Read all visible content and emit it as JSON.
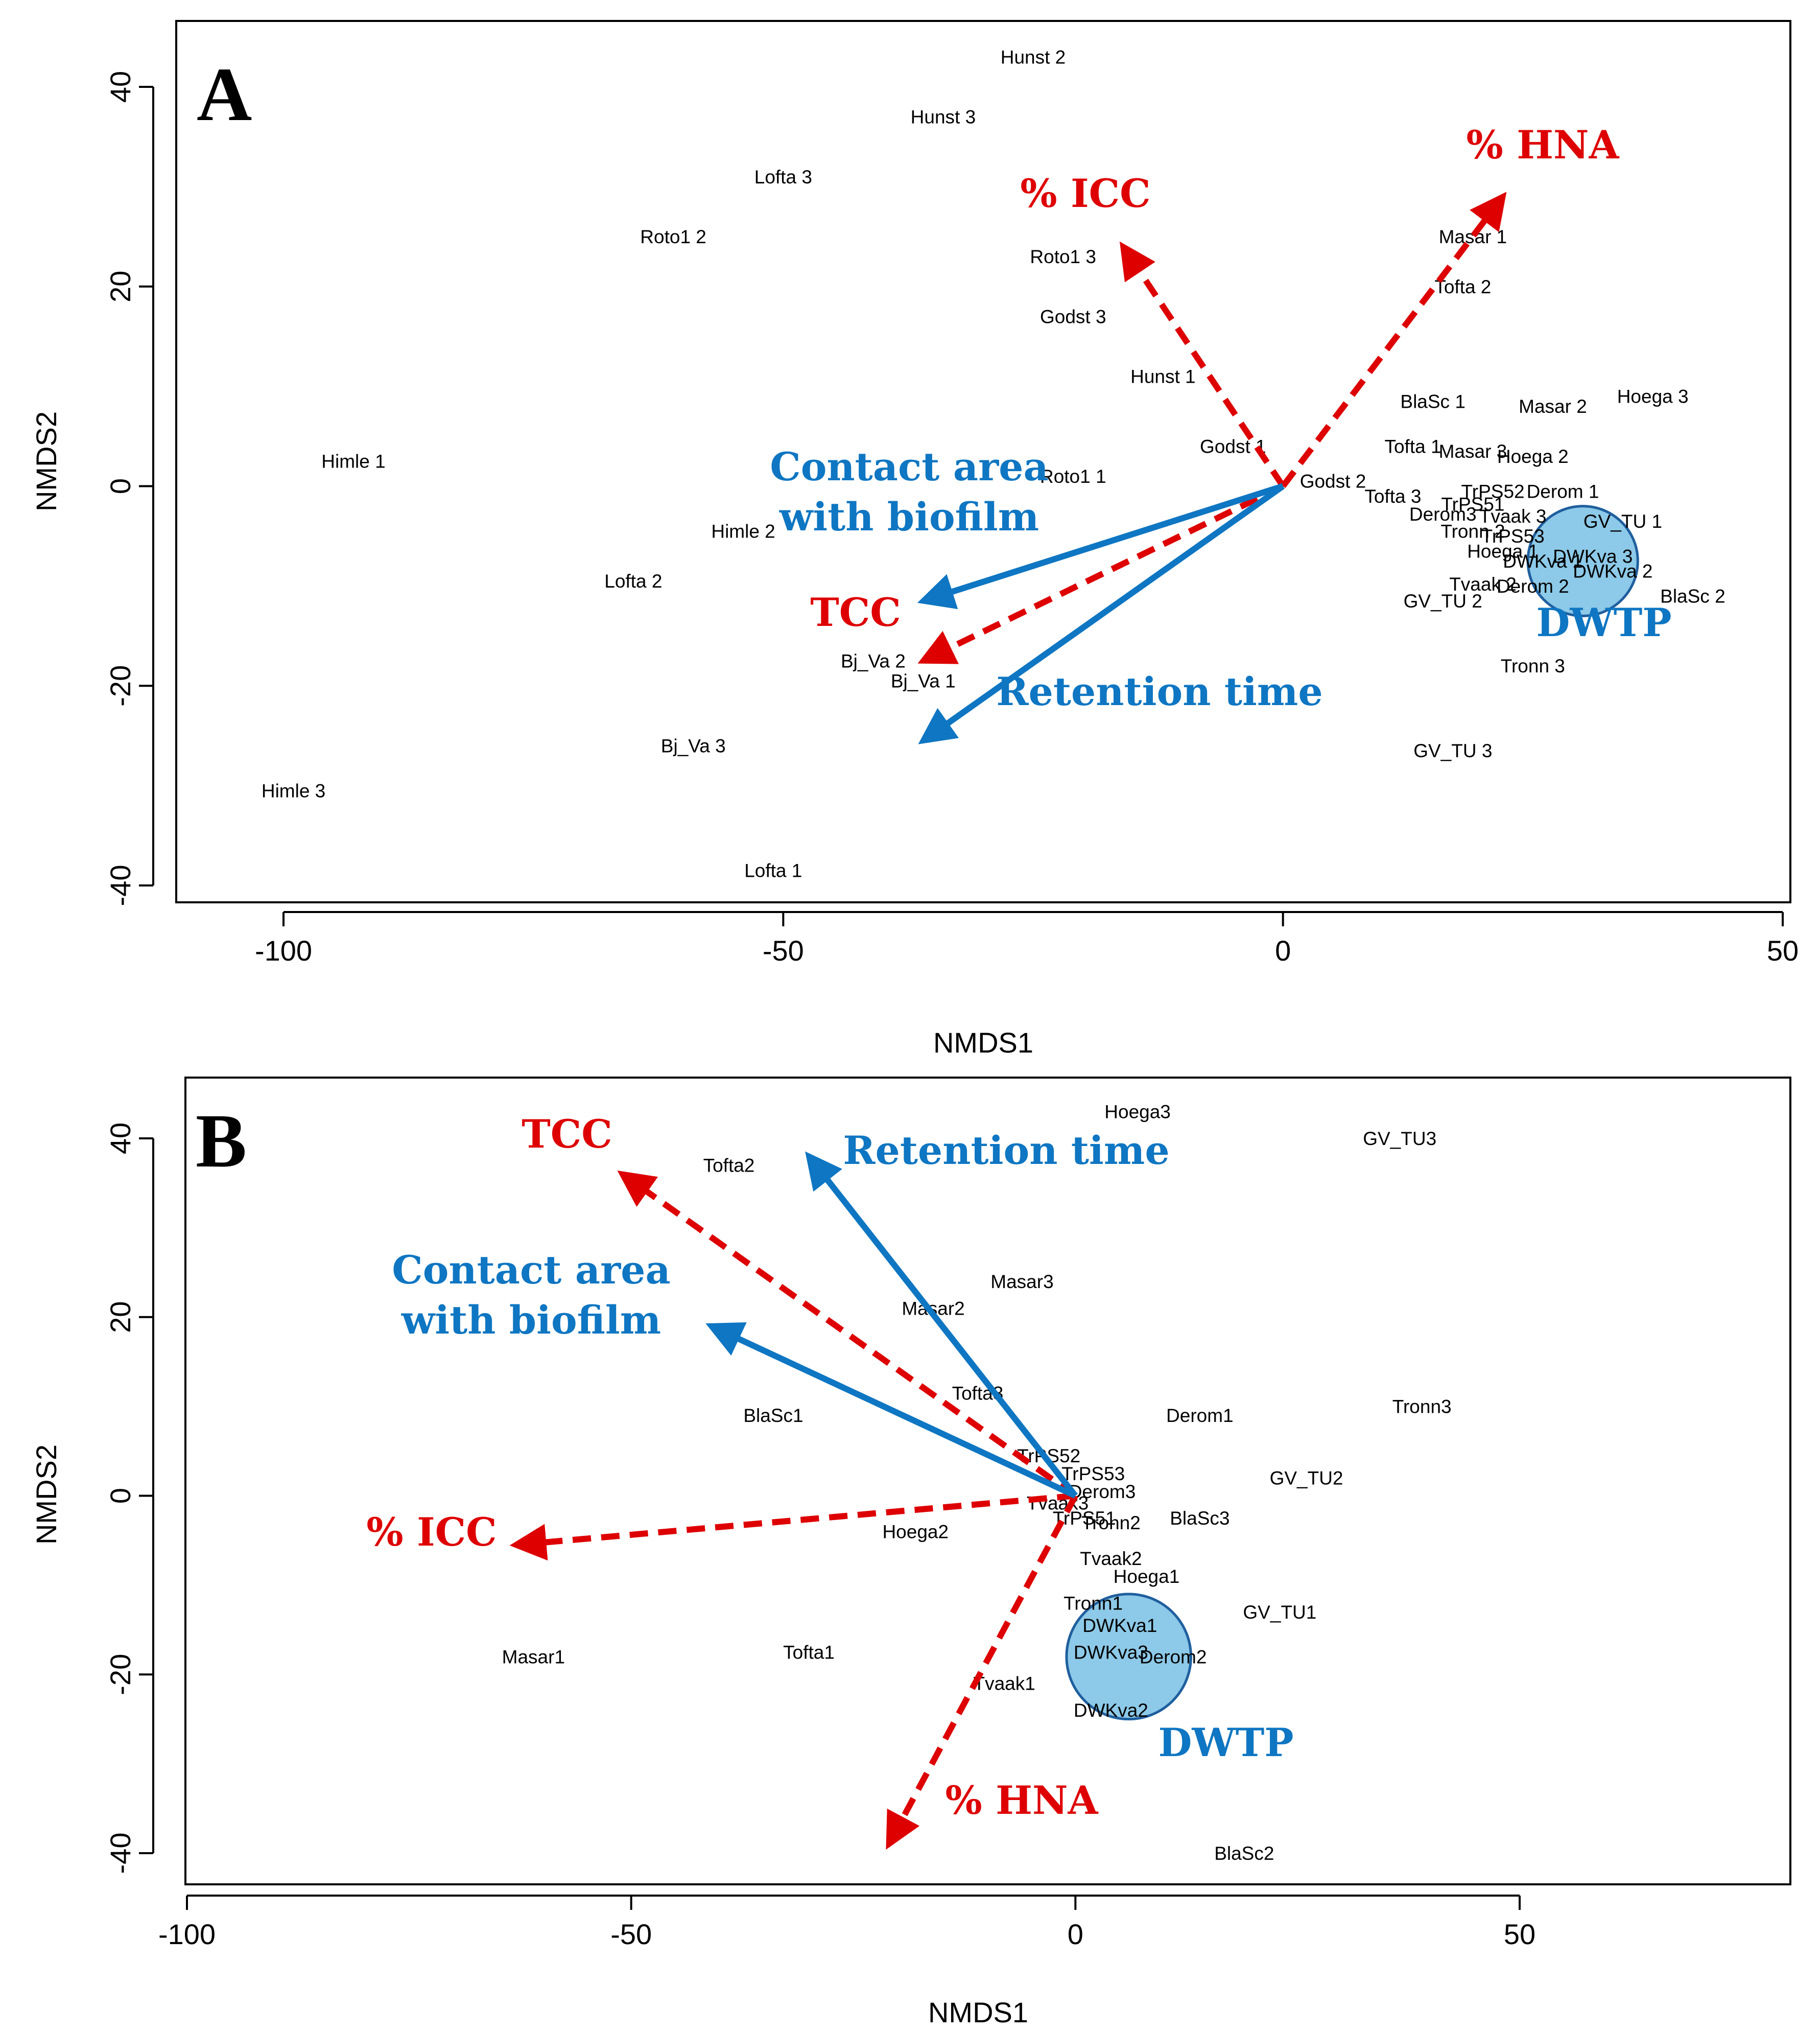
{
  "colors": {
    "env_arrow": "#0e76c2",
    "cyto_arrow": "#de0000",
    "dwtp_fill": "#8dc9e8",
    "dwtp_stroke": "#1f5f9e"
  },
  "chart_data": [
    {
      "type": "scatter",
      "panel": "A",
      "xlabel": "NMDS1",
      "ylabel": "NMDS2",
      "xlim": [
        -111,
        51
      ],
      "ylim": [
        -41.5,
        46.5
      ],
      "xticks": [
        -100,
        -50,
        0,
        50
      ],
      "yticks": [
        -40,
        -20,
        0,
        20,
        40
      ],
      "xtick_labels": [
        "-100",
        "-50",
        "0",
        "50"
      ],
      "ytick_labels": [
        "-40",
        "-20",
        "0",
        "20",
        "40"
      ],
      "points": [
        {
          "label": "Hunst 2",
          "x": -25,
          "y": 43
        },
        {
          "label": "Hunst 3",
          "x": -34,
          "y": 37
        },
        {
          "label": "Lofta 3",
          "x": -50,
          "y": 31
        },
        {
          "label": "Roto1 2",
          "x": -61,
          "y": 25
        },
        {
          "label": "Roto1 3",
          "x": -22,
          "y": 23
        },
        {
          "label": "Godst 3",
          "x": -21,
          "y": 17
        },
        {
          "label": "Hunst 1",
          "x": -12,
          "y": 11
        },
        {
          "label": "Himle 1",
          "x": -93,
          "y": 2.5
        },
        {
          "label": "Roto1 1",
          "x": -21,
          "y": 1
        },
        {
          "label": "Himle 2",
          "x": -54,
          "y": -4.5
        },
        {
          "label": "Lofta 2",
          "x": -65,
          "y": -9.5
        },
        {
          "label": "Bj_Va 2",
          "x": -41,
          "y": -17.5
        },
        {
          "label": "Bj_Va 1",
          "x": -36,
          "y": -19.5
        },
        {
          "label": "Bj_Va 3",
          "x": -59,
          "y": -26
        },
        {
          "label": "Himle 3",
          "x": -99,
          "y": -30.5
        },
        {
          "label": "Lofta 1",
          "x": -51,
          "y": -38.5
        },
        {
          "label": "Masar 1",
          "x": 19,
          "y": 25
        },
        {
          "label": "Tofta 2",
          "x": 18,
          "y": 20
        },
        {
          "label": "BlaSc 1",
          "x": 15,
          "y": 8.5
        },
        {
          "label": "Masar 2",
          "x": 27,
          "y": 8
        },
        {
          "label": "Hoega 3",
          "x": 37,
          "y": 9
        },
        {
          "label": "Godst 1",
          "x": -5,
          "y": 4
        },
        {
          "label": "Tofta 1",
          "x": 13,
          "y": 4
        },
        {
          "label": "Masar 3",
          "x": 19,
          "y": 3.5
        },
        {
          "label": "Hoega 2",
          "x": 25,
          "y": 3
        },
        {
          "label": "Godst 2",
          "x": 5,
          "y": 0.5
        },
        {
          "label": "Tofta 3",
          "x": 11,
          "y": -1
        },
        {
          "label": "TrPS52",
          "x": 21,
          "y": -0.5
        },
        {
          "label": "Derom 1",
          "x": 28,
          "y": -0.5
        },
        {
          "label": "TrPS51",
          "x": 19,
          "y": -1.8
        },
        {
          "label": "Derom3",
          "x": 16,
          "y": -2.8
        },
        {
          "label": "Tvaak 3",
          "x": 23,
          "y": -3
        },
        {
          "label": "GV_TU 1",
          "x": 34,
          "y": -3.5
        },
        {
          "label": "Tronn 2",
          "x": 19,
          "y": -4.5
        },
        {
          "label": "TrPS53",
          "x": 23,
          "y": -5
        },
        {
          "label": "Hoega 1",
          "x": 22,
          "y": -6.5
        },
        {
          "label": "DWKva 3",
          "x": 31,
          "y": -7
        },
        {
          "label": "DWKva 1",
          "x": 26,
          "y": -7.5
        },
        {
          "label": "DWKva 2",
          "x": 33,
          "y": -8.5
        },
        {
          "label": "Tvaak 2",
          "x": 20,
          "y": -9.8
        },
        {
          "label": "Derom 2",
          "x": 25,
          "y": -10
        },
        {
          "label": "GV_TU 2",
          "x": 16,
          "y": -11.5
        },
        {
          "label": "BlaSc 2",
          "x": 41,
          "y": -11
        },
        {
          "label": "Tronn 3",
          "x": 25,
          "y": -18
        },
        {
          "label": "GV_TU 3",
          "x": 17,
          "y": -26.5
        }
      ],
      "arrows": [
        {
          "label": "% HNA",
          "kind": "cytometry",
          "x": 22,
          "y": 29
        },
        {
          "label": "% ICC",
          "kind": "cytometry",
          "x": -16,
          "y": 24
        },
        {
          "label": "TCC",
          "kind": "cytometry",
          "x": -36,
          "y": -17.5
        },
        {
          "label": "Contact area with biofilm",
          "kind": "environment",
          "x": -36,
          "y": -11.5
        },
        {
          "label": "Retention time",
          "kind": "environment",
          "x": -36,
          "y": -25.5
        }
      ],
      "dwtp_group": {
        "label": "DWTP",
        "x": 30,
        "y": -7.5,
        "radius": 5.5
      }
    },
    {
      "type": "scatter",
      "panel": "B",
      "xlabel": "NMDS1",
      "ylabel": "NMDS2",
      "xlim": [
        -101,
        80
      ],
      "ylim": [
        -43,
        46
      ],
      "xticks": [
        -100,
        -50,
        0,
        50
      ],
      "yticks": [
        -40,
        -20,
        0,
        20,
        40
      ],
      "xtick_labels": [
        "-100",
        "-50",
        "0",
        "50"
      ],
      "ytick_labels": [
        "-40",
        "-20",
        "0",
        "20",
        "40"
      ],
      "points": [
        {
          "label": "Hoega3",
          "x": 7,
          "y": 43
        },
        {
          "label": "GV_TU3",
          "x": 36.5,
          "y": 40
        },
        {
          "label": "Tofta2",
          "x": -39,
          "y": 37
        },
        {
          "label": "Masar3",
          "x": -6,
          "y": 24
        },
        {
          "label": "Masar2",
          "x": -16,
          "y": 21
        },
        {
          "label": "Tofta3",
          "x": -11,
          "y": 11.5
        },
        {
          "label": "BlaSc1",
          "x": -34,
          "y": 9
        },
        {
          "label": "Derom1",
          "x": 14,
          "y": 9
        },
        {
          "label": "Tronn3",
          "x": 39,
          "y": 10
        },
        {
          "label": "TrPS52",
          "x": -3,
          "y": 4.5
        },
        {
          "label": "TrPS53",
          "x": 2,
          "y": 2.5
        },
        {
          "label": "Derom3",
          "x": 3,
          "y": 0.5
        },
        {
          "label": "GV_TU2",
          "x": 26,
          "y": 2
        },
        {
          "label": "Tvaak3",
          "x": -2,
          "y": -0.8
        },
        {
          "label": "TrPS51",
          "x": 1,
          "y": -2.5
        },
        {
          "label": "Tronn2",
          "x": 4,
          "y": -3
        },
        {
          "label": "BlaSc3",
          "x": 14,
          "y": -2.5
        },
        {
          "label": "Hoega2",
          "x": -18,
          "y": -4
        },
        {
          "label": "Tvaak2",
          "x": 4,
          "y": -7
        },
        {
          "label": "Hoega1",
          "x": 8,
          "y": -9
        },
        {
          "label": "Tronn1",
          "x": 2,
          "y": -12
        },
        {
          "label": "GV_TU1",
          "x": 23,
          "y": -13
        },
        {
          "label": "DWKva1",
          "x": 5,
          "y": -14.5
        },
        {
          "label": "DWKva3",
          "x": 4,
          "y": -17.5
        },
        {
          "label": "Derom2",
          "x": 11,
          "y": -18
        },
        {
          "label": "Masar1",
          "x": -61,
          "y": -18
        },
        {
          "label": "Tofta1",
          "x": -30,
          "y": -17.5
        },
        {
          "label": "Tvaak1",
          "x": -8,
          "y": -21
        },
        {
          "label": "DWKva2",
          "x": 4,
          "y": -24
        },
        {
          "label": "BlaSc2",
          "x": 19,
          "y": -40
        }
      ],
      "arrows": [
        {
          "label": "TCC",
          "kind": "cytometry",
          "x": -51,
          "y": 36
        },
        {
          "label": "% ICC",
          "kind": "cytometry",
          "x": -63,
          "y": -5.5
        },
        {
          "label": "% HNA",
          "kind": "cytometry",
          "x": -21,
          "y": -39
        },
        {
          "label": "Retention time",
          "kind": "environment",
          "x": -30,
          "y": 38
        },
        {
          "label": "Contact area with biofilm",
          "kind": "environment",
          "x": -41,
          "y": 19
        }
      ],
      "dwtp_group": {
        "label": "DWTP",
        "x": 6,
        "y": -18,
        "radius": 7
      }
    }
  ]
}
